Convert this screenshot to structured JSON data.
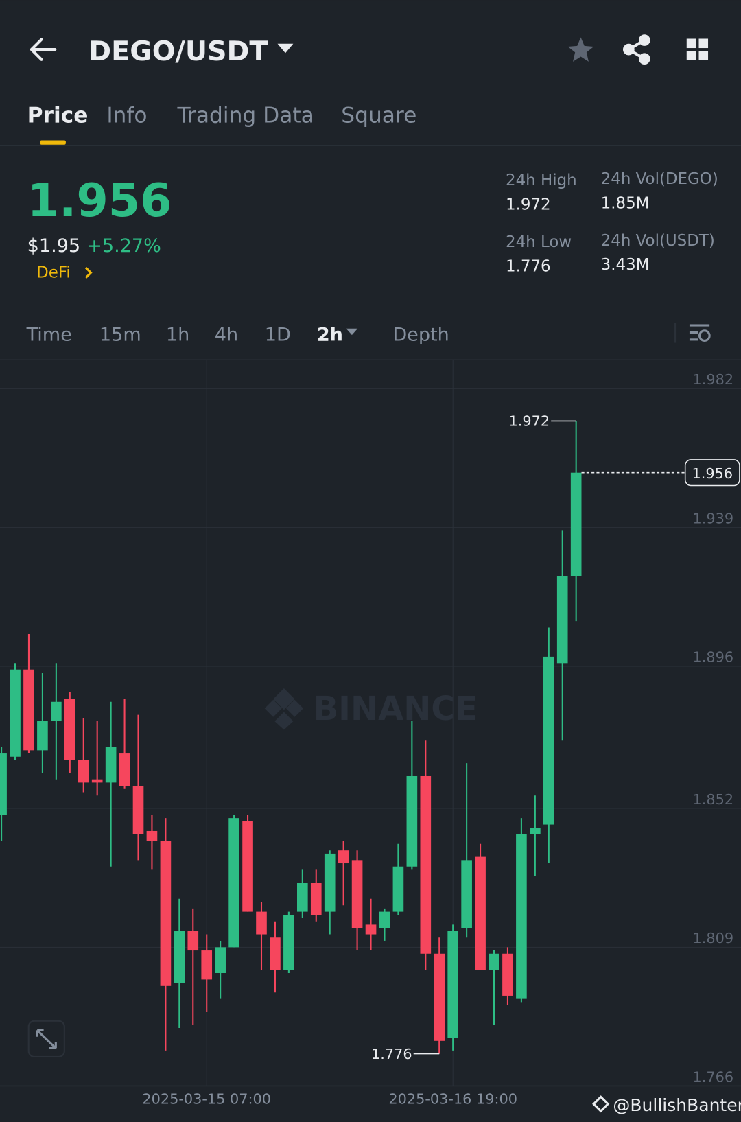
{
  "header": {
    "pair": "DEGO/USDT"
  },
  "tabs": [
    "Price",
    "Info",
    "Trading Data",
    "Square"
  ],
  "ticker": {
    "price": "1.956",
    "usd_price": "$1.95",
    "change": "+5.27%",
    "tag": "DeFi",
    "stats": [
      {
        "label": "24h High",
        "value": "1.972"
      },
      {
        "label": "24h Vol(DEGO)",
        "value": "1.85M"
      },
      {
        "label": "24h Low",
        "value": "1.776"
      },
      {
        "label": "24h Vol(USDT)",
        "value": "3.43M"
      }
    ]
  },
  "intervals": [
    "Time",
    "15m",
    "1h",
    "4h",
    "1D",
    "2h",
    "Depth"
  ],
  "watermark": "BINANCE",
  "credit": "@BullishBanter",
  "chart_data": {
    "type": "candlestick",
    "categories": [
      null,
      null,
      null,
      null,
      null,
      null,
      null,
      null,
      null,
      null,
      null,
      null,
      null,
      null,
      null,
      "2025-03-15 07:00",
      null,
      null,
      null,
      null,
      null,
      null,
      null,
      null,
      null,
      null,
      null,
      null,
      null,
      null,
      null,
      null,
      null,
      "2025-03-16 19:00",
      null,
      null,
      null,
      null,
      null,
      null,
      null,
      null,
      null
    ],
    "open": [
      1.85,
      1.868,
      1.895,
      1.87,
      1.879,
      1.886,
      1.867,
      1.861,
      1.86,
      1.869,
      1.859,
      1.845,
      1.842,
      1.798,
      1.814,
      1.808,
      1.801,
      1.809,
      1.848,
      1.82,
      1.812,
      1.802,
      1.82,
      1.829,
      1.82,
      1.839,
      1.836,
      1.816,
      1.815,
      1.82,
      1.834,
      1.862,
      1.807,
      1.781,
      1.815,
      1.837,
      1.802,
      1.807,
      1.793,
      1.844,
      1.847,
      1.897,
      1.924
    ],
    "high": [
      1.871,
      1.897,
      1.906,
      1.894,
      1.897,
      1.888,
      1.88,
      1.879,
      1.885,
      1.886,
      1.881,
      1.85,
      1.849,
      1.824,
      1.821,
      1.813,
      1.811,
      1.85,
      1.85,
      1.823,
      1.817,
      1.82,
      1.833,
      1.833,
      1.839,
      1.842,
      1.839,
      1.824,
      1.821,
      1.841,
      1.879,
      1.873,
      1.812,
      1.816,
      1.866,
      1.841,
      1.808,
      1.809,
      1.849,
      1.856,
      1.908,
      1.938,
      1.972
    ],
    "low": [
      1.842,
      1.867,
      1.869,
      1.863,
      1.861,
      1.863,
      1.857,
      1.856,
      1.834,
      1.858,
      1.836,
      1.833,
      1.777,
      1.784,
      1.785,
      1.789,
      1.793,
      1.809,
      1.82,
      1.802,
      1.795,
      1.801,
      1.818,
      1.817,
      1.813,
      1.822,
      1.808,
      1.808,
      1.811,
      1.819,
      1.833,
      1.802,
      1.776,
      1.777,
      1.812,
      1.802,
      1.785,
      1.791,
      1.792,
      1.831,
      1.835,
      1.873,
      1.91
    ],
    "close": [
      1.869,
      1.895,
      1.87,
      1.879,
      1.885,
      1.867,
      1.86,
      1.86,
      1.871,
      1.859,
      1.844,
      1.842,
      1.797,
      1.814,
      1.808,
      1.799,
      1.809,
      1.849,
      1.82,
      1.813,
      1.802,
      1.819,
      1.829,
      1.819,
      1.838,
      1.835,
      1.815,
      1.813,
      1.82,
      1.834,
      1.862,
      1.807,
      1.78,
      1.814,
      1.836,
      1.802,
      1.807,
      1.794,
      1.844,
      1.846,
      1.899,
      1.924,
      1.956
    ],
    "up_color": "#2ebd85",
    "down_color": "#f6465d",
    "ylim": [
      1.766,
      1.99
    ],
    "yticks": [
      1.982,
      1.939,
      1.896,
      1.852,
      1.809,
      1.766
    ],
    "grid": true
  }
}
